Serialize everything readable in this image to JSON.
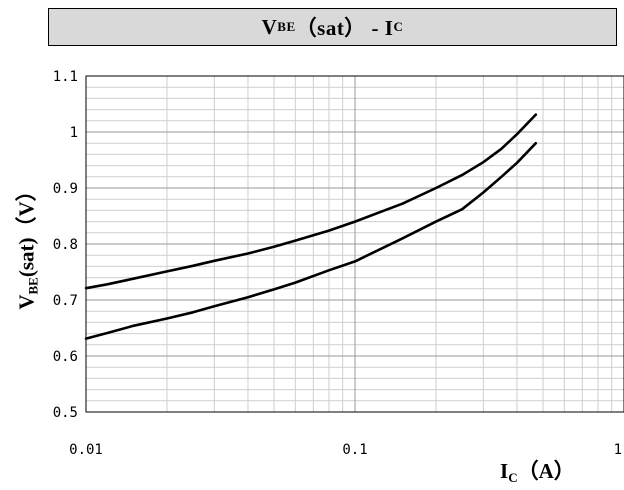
{
  "title": {
    "main": "V",
    "sub": "BE",
    "rest": "（sat） - I",
    "sub2": "C"
  },
  "ylabel": {
    "main": "V",
    "sub": "BE",
    "rest": "(sat)（V）"
  },
  "xlabel": {
    "main": "I",
    "sub": "C",
    "rest": "（A）"
  },
  "chart_data": {
    "type": "line",
    "xscale": "log",
    "xlim": [
      0.01,
      1
    ],
    "ylim": [
      0.5,
      1.1
    ],
    "grid": true,
    "legend": "none",
    "x_ticks": [
      "0.01",
      "0.1",
      "1"
    ],
    "y_ticks": [
      "0.5",
      "0.6",
      "0.7",
      "0.8",
      "0.9",
      "1",
      "1.1"
    ],
    "series": [
      {
        "x": [
          0.01,
          0.012,
          0.015,
          0.02,
          0.025,
          0.03,
          0.04,
          0.05,
          0.06,
          0.08,
          0.1,
          0.15,
          0.2,
          0.25,
          0.3,
          0.35,
          0.4,
          0.47
        ],
        "y": [
          0.721,
          0.728,
          0.738,
          0.751,
          0.761,
          0.77,
          0.783,
          0.795,
          0.806,
          0.824,
          0.84,
          0.872,
          0.9,
          0.923,
          0.946,
          0.97,
          0.996,
          1.031
        ]
      },
      {
        "x": [
          0.01,
          0.012,
          0.015,
          0.02,
          0.025,
          0.03,
          0.04,
          0.05,
          0.06,
          0.08,
          0.1,
          0.15,
          0.2,
          0.25,
          0.3,
          0.35,
          0.4,
          0.47
        ],
        "y": [
          0.631,
          0.641,
          0.654,
          0.667,
          0.678,
          0.689,
          0.705,
          0.719,
          0.731,
          0.753,
          0.769,
          0.81,
          0.84,
          0.862,
          0.892,
          0.92,
          0.945,
          0.98
        ]
      }
    ]
  }
}
